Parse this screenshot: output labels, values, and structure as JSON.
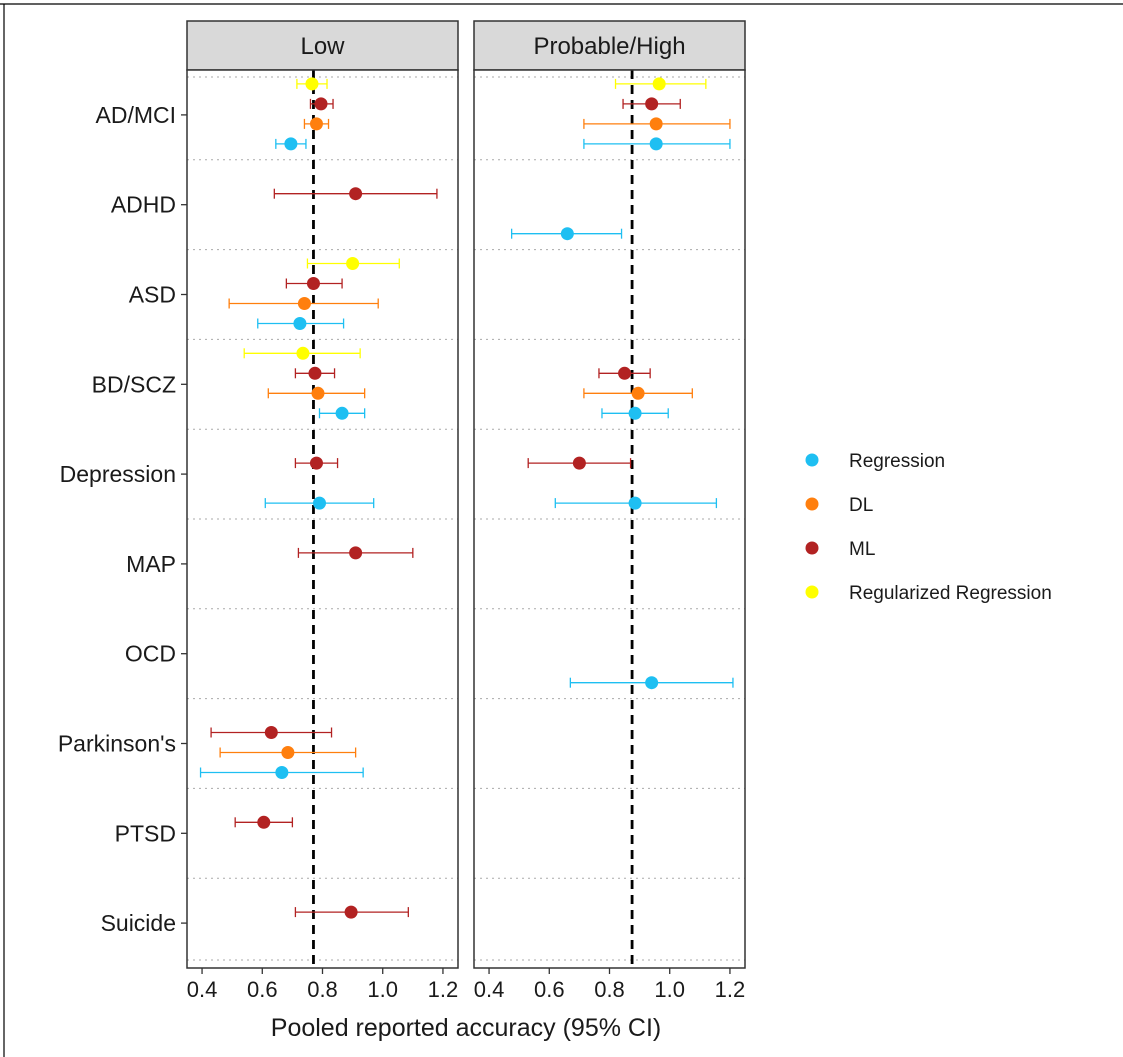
{
  "chart_data": {
    "type": "scatter",
    "subtype": "forest-plot",
    "title": "",
    "xlabel": "Pooled reported accuracy (95% CI)",
    "ylabel": "",
    "xlim": [
      0.35,
      1.25
    ],
    "xticks": [
      0.4,
      0.6,
      0.8,
      1.0,
      1.2
    ],
    "xtick_labels": [
      "0.4",
      "0.6",
      "0.8",
      "1.0",
      "1.2"
    ],
    "grid": "horizontal dotted separators between categories",
    "legend_position": "right",
    "categories": [
      "AD/MCI",
      "ADHD",
      "ASD",
      "BD/SCZ",
      "Depression",
      "MAP",
      "OCD",
      "Parkinson's",
      "PTSD",
      "Suicide"
    ],
    "series": [
      {
        "name": "Regression",
        "color": "#1EBFF2"
      },
      {
        "name": "DL",
        "color": "#FF7F0E"
      },
      {
        "name": "ML",
        "color": "#B22222"
      },
      {
        "name": "Regularized Regression",
        "color": "#FFFF00"
      }
    ],
    "panels": [
      {
        "name": "Low",
        "reference_line": 0.77,
        "points": [
          {
            "category": "AD/MCI",
            "series": "Regularized Regression",
            "estimate": 0.765,
            "lower": 0.715,
            "upper": 0.815
          },
          {
            "category": "AD/MCI",
            "series": "ML",
            "estimate": 0.795,
            "lower": 0.76,
            "upper": 0.835
          },
          {
            "category": "AD/MCI",
            "series": "DL",
            "estimate": 0.78,
            "lower": 0.74,
            "upper": 0.82
          },
          {
            "category": "AD/MCI",
            "series": "Regression",
            "estimate": 0.695,
            "lower": 0.645,
            "upper": 0.745
          },
          {
            "category": "ADHD",
            "series": "ML",
            "estimate": 0.91,
            "lower": 0.64,
            "upper": 1.18
          },
          {
            "category": "ASD",
            "series": "Regularized Regression",
            "estimate": 0.9,
            "lower": 0.75,
            "upper": 1.055
          },
          {
            "category": "ASD",
            "series": "ML",
            "estimate": 0.77,
            "lower": 0.68,
            "upper": 0.865
          },
          {
            "category": "ASD",
            "series": "DL",
            "estimate": 0.74,
            "lower": 0.49,
            "upper": 0.985
          },
          {
            "category": "ASD",
            "series": "Regression",
            "estimate": 0.725,
            "lower": 0.585,
            "upper": 0.87
          },
          {
            "category": "BD/SCZ",
            "series": "Regularized Regression",
            "estimate": 0.735,
            "lower": 0.54,
            "upper": 0.925
          },
          {
            "category": "BD/SCZ",
            "series": "ML",
            "estimate": 0.775,
            "lower": 0.71,
            "upper": 0.84
          },
          {
            "category": "BD/SCZ",
            "series": "DL",
            "estimate": 0.785,
            "lower": 0.62,
            "upper": 0.94
          },
          {
            "category": "BD/SCZ",
            "series": "Regression",
            "estimate": 0.865,
            "lower": 0.79,
            "upper": 0.94
          },
          {
            "category": "Depression",
            "series": "ML",
            "estimate": 0.78,
            "lower": 0.71,
            "upper": 0.85
          },
          {
            "category": "Depression",
            "series": "Regression",
            "estimate": 0.79,
            "lower": 0.61,
            "upper": 0.97
          },
          {
            "category": "MAP",
            "series": "ML",
            "estimate": 0.91,
            "lower": 0.72,
            "upper": 1.1
          },
          {
            "category": "Parkinson's",
            "series": "ML",
            "estimate": 0.63,
            "lower": 0.43,
            "upper": 0.83
          },
          {
            "category": "Parkinson's",
            "series": "DL",
            "estimate": 0.685,
            "lower": 0.46,
            "upper": 0.91
          },
          {
            "category": "Parkinson's",
            "series": "Regression",
            "estimate": 0.665,
            "lower": 0.395,
            "upper": 0.935
          },
          {
            "category": "PTSD",
            "series": "ML",
            "estimate": 0.605,
            "lower": 0.51,
            "upper": 0.7
          },
          {
            "category": "Suicide",
            "series": "ML",
            "estimate": 0.895,
            "lower": 0.71,
            "upper": 1.085
          }
        ]
      },
      {
        "name": "Probable/High",
        "reference_line": 0.875,
        "points": [
          {
            "category": "AD/MCI",
            "series": "Regularized Regression",
            "estimate": 0.965,
            "lower": 0.82,
            "upper": 1.12
          },
          {
            "category": "AD/MCI",
            "series": "ML",
            "estimate": 0.94,
            "lower": 0.845,
            "upper": 1.035
          },
          {
            "category": "AD/MCI",
            "series": "DL",
            "estimate": 0.955,
            "lower": 0.715,
            "upper": 1.2
          },
          {
            "category": "AD/MCI",
            "series": "Regression",
            "estimate": 0.955,
            "lower": 0.715,
            "upper": 1.2
          },
          {
            "category": "ADHD",
            "series": "Regression",
            "estimate": 0.66,
            "lower": 0.475,
            "upper": 0.84
          },
          {
            "category": "BD/SCZ",
            "series": "ML",
            "estimate": 0.85,
            "lower": 0.765,
            "upper": 0.935
          },
          {
            "category": "BD/SCZ",
            "series": "DL",
            "estimate": 0.895,
            "lower": 0.715,
            "upper": 1.075
          },
          {
            "category": "BD/SCZ",
            "series": "Regression",
            "estimate": 0.885,
            "lower": 0.775,
            "upper": 0.995
          },
          {
            "category": "Depression",
            "series": "ML",
            "estimate": 0.7,
            "lower": 0.53,
            "upper": 0.87
          },
          {
            "category": "Depression",
            "series": "Regression",
            "estimate": 0.885,
            "lower": 0.62,
            "upper": 1.155
          },
          {
            "category": "OCD",
            "series": "Regression",
            "estimate": 0.94,
            "lower": 0.67,
            "upper": 1.21
          }
        ]
      }
    ]
  }
}
